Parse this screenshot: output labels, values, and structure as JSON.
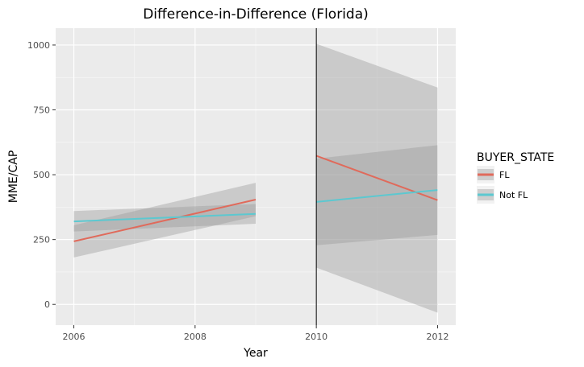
{
  "chart_data": {
    "type": "line",
    "title": "Difference-in-Difference (Florida)",
    "xlabel": "Year",
    "ylabel": "MME/CAP",
    "xlim": [
      2005.7,
      2012.3
    ],
    "ylim": [
      -80,
      1065
    ],
    "x_ticks": [
      2006,
      2008,
      2010,
      2012
    ],
    "y_ticks": [
      0,
      250,
      500,
      750,
      1000
    ],
    "grid": true,
    "legend": {
      "title": "BUYER_STATE",
      "placement": "right"
    },
    "vline_x": 2010,
    "series": [
      {
        "name": "FL",
        "color": "#e06a5b",
        "segments": [
          {
            "x": [
              2006,
              2009
            ],
            "y": [
              243,
              404
            ],
            "lower": [
              181,
              340
            ],
            "upper": [
              305,
              469
            ]
          },
          {
            "x": [
              2010,
              2012
            ],
            "y": [
              573,
              402
            ],
            "lower": [
              142,
              -32
            ],
            "upper": [
              1005,
              836
            ]
          }
        ]
      },
      {
        "name": "Not FL",
        "color": "#5cc8d0",
        "segments": [
          {
            "x": [
              2006,
              2009
            ],
            "y": [
              320,
              349
            ],
            "lower": [
              281,
              311
            ],
            "upper": [
              360,
              387
            ]
          },
          {
            "x": [
              2010,
              2012
            ],
            "y": [
              395,
              441
            ],
            "lower": [
              228,
              268
            ],
            "upper": [
              562,
              614
            ]
          }
        ]
      }
    ]
  }
}
